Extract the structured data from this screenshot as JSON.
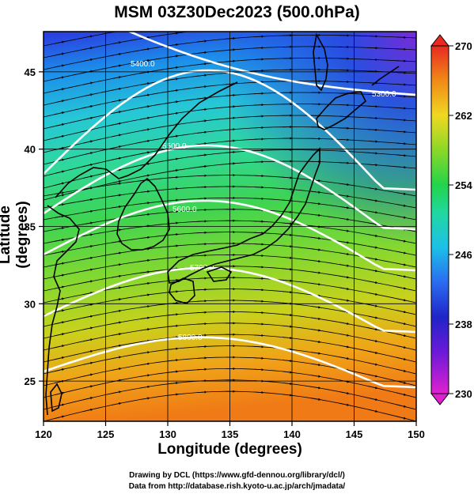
{
  "title": "MSM 03Z30Dec2023 (500.0hPa)",
  "xlabel": "Longitude (degrees)",
  "ylabel": "Latitude  (degrees)",
  "footer": {
    "line1": "Drawing by DCL (https://www.gfd-dennou.org/library/dcl/)",
    "line2": "Data from http://database.rish.kyoto-u.ac.jp/arch/jmadata/"
  },
  "chart_data": {
    "type": "heatmap",
    "xlim": [
      120,
      150
    ],
    "ylim": [
      22.4,
      47.6
    ],
    "x_ticks": [
      120,
      125,
      130,
      135,
      140,
      145,
      150
    ],
    "y_ticks": [
      25,
      30,
      35,
      40,
      45
    ],
    "grid": true,
    "colorbar": {
      "min": 230,
      "max": 270,
      "ticks": [
        230,
        238,
        246,
        254,
        262,
        270
      ]
    },
    "contours": [
      {
        "label": "5400.0"
      },
      {
        "label": "5300.0"
      },
      {
        "label": "5500.0"
      },
      {
        "label": "5600.0"
      },
      {
        "label": "5700.0"
      },
      {
        "label": "5800.0"
      }
    ]
  }
}
